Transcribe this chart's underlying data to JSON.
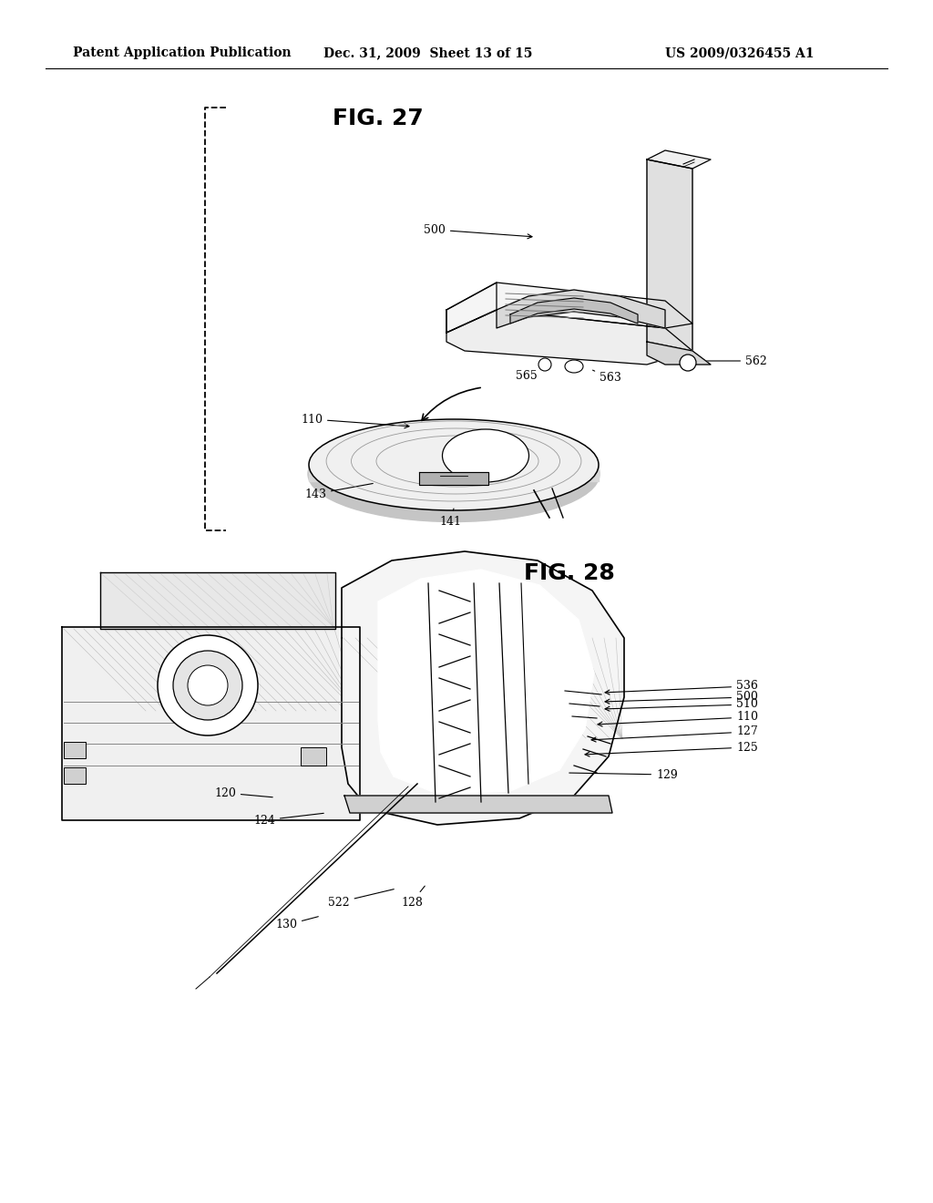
{
  "background_color": "#ffffff",
  "text_color": "#000000",
  "header_left": "Patent Application Publication",
  "header_center": "Dec. 31, 2009  Sheet 13 of 15",
  "header_right": "US 2009/0326455 A1",
  "header_fontsize": 10,
  "fig27_title": "FIG. 27",
  "fig28_title": "FIG. 28",
  "fig_title_fontsize": 18,
  "ann_fontsize": 9
}
